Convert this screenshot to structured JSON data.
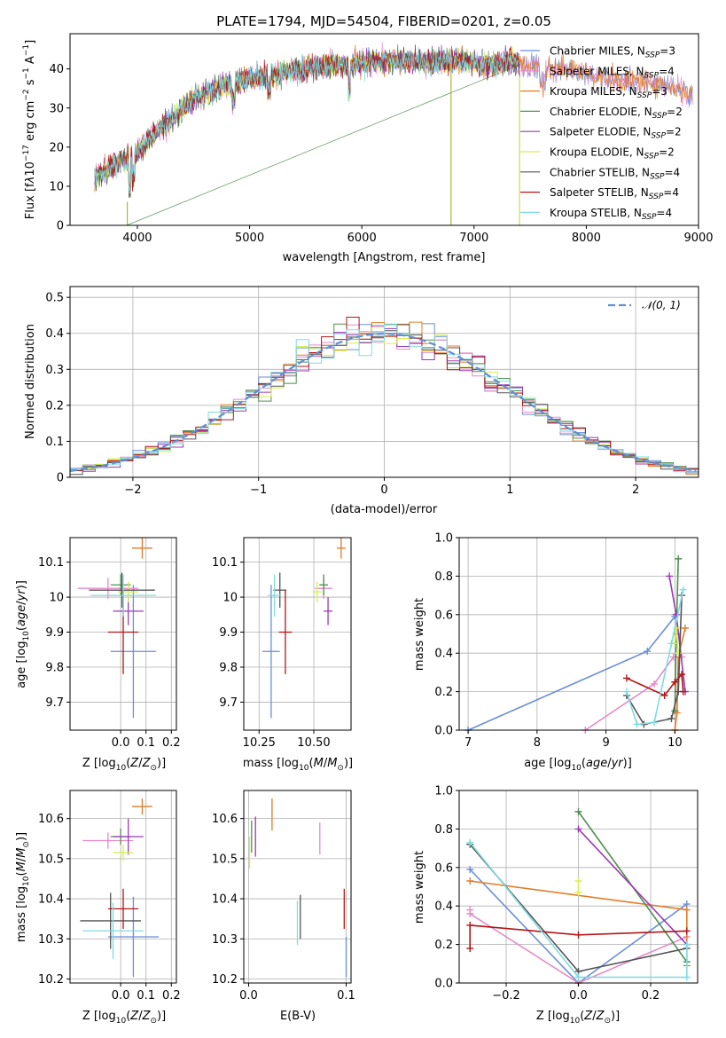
{
  "colors": {
    "Chabrier MILES": "#6a8ed8",
    "Salpeter MILES": "#e58ac6",
    "Kroupa MILES": "#e07c28",
    "Chabrier ELODIE": "#4f8f4f",
    "Salpeter ELODIE": "#9b39b6",
    "Kroupa ELODIE": "#d8ee50",
    "Chabrier STELIB": "#555555",
    "Salpeter STELIB": "#b01717",
    "Kroupa STELIB": "#7fdbe0",
    "normal": "#5f8fd6"
  },
  "chart_data": [
    {
      "type": "line",
      "title": "PLATE=1794, MJD=54504, FIBERID=0201, z=0.05",
      "xlabel": "wavelength [Angstrom, rest frame]",
      "ylabel": "Flux [fλ10⁻¹⁷ erg cm⁻² s⁻¹ A⁻¹]",
      "xlim": [
        3400,
        9000
      ],
      "ylim": [
        0,
        49
      ],
      "xticks": [
        4000,
        5000,
        6000,
        7000,
        8000,
        9000
      ],
      "yticks": [
        0,
        10,
        20,
        30,
        40
      ],
      "legend": "upper right",
      "series": [
        {
          "name": "Chabrier MILES",
          "nssp": "3"
        },
        {
          "name": "Salpeter MILES",
          "nssp": "4"
        },
        {
          "name": "Kroupa MILES",
          "nssp": "3"
        },
        {
          "name": "Chabrier ELODIE",
          "nssp": "2"
        },
        {
          "name": "Salpeter ELODIE",
          "nssp": "2"
        },
        {
          "name": "Kroupa ELODIE",
          "nssp": "2"
        },
        {
          "name": "Chabrier STELIB",
          "nssp": "4"
        },
        {
          "name": "Salpeter STELIB",
          "nssp": "4"
        },
        {
          "name": "Kroupa STELIB",
          "nssp": "4"
        }
      ],
      "spectrum_envelope": {
        "x": [
          3620,
          3700,
          3800,
          3900,
          4000,
          4100,
          4200,
          4300,
          4400,
          4500,
          4700,
          4900,
          5100,
          5300,
          5500,
          5700,
          5900,
          6100,
          6300,
          6500,
          6700,
          6900,
          7100,
          7300,
          7500,
          7700,
          7900,
          8100,
          8300,
          8500,
          8700,
          8900
        ],
        "y": [
          12,
          14,
          16,
          17,
          19,
          22,
          25,
          27,
          30,
          32,
          35,
          37,
          38,
          39,
          40,
          41,
          41,
          42,
          42,
          42,
          42,
          42,
          41,
          42,
          41,
          40,
          40,
          38,
          37,
          37,
          36,
          34
        ]
      }
    },
    {
      "type": "histogram",
      "xlabel": "(data-model)/error",
      "ylabel": "Normed distribution",
      "xlim": [
        -2.5,
        2.5
      ],
      "ylim": [
        0,
        0.53
      ],
      "xticks": [
        -2,
        -1,
        0,
        1,
        2
      ],
      "yticks": [
        0.0,
        0.1,
        0.2,
        0.3,
        0.4,
        0.5
      ],
      "bin_width": 0.1,
      "legend_label": "𝒩(0, 1)",
      "legend_position": "upper right"
    },
    {
      "type": "scatter",
      "xlabel": "Z [log₁₀(Z/Z⊙)]",
      "ylabel": "age  [log₁₀(age/yr)]",
      "xlim": [
        -0.2,
        0.22
      ],
      "ylim": [
        9.62,
        10.17
      ],
      "xticks": [
        "0.0",
        "0.1",
        "0.2"
      ],
      "xtick_values": [
        0.0,
        0.1,
        0.2
      ],
      "yticks": [
        9.7,
        9.8,
        9.9,
        10.0,
        10.1
      ],
      "points": [
        {
          "model": "Chabrier MILES",
          "x": 0.05,
          "xerr": 0.09,
          "y": 9.845,
          "yerr": 0.19
        },
        {
          "model": "Salpeter MILES",
          "x": -0.05,
          "xerr": 0.12,
          "y": 10.025,
          "yerr": 0.03
        },
        {
          "model": "Kroupa MILES",
          "x": 0.085,
          "xerr": 0.04,
          "y": 10.14,
          "yerr": 0.03
        },
        {
          "model": "Chabrier ELODIE",
          "x": 0.0,
          "xerr": 0.04,
          "y": 10.035,
          "yerr": 0.03
        },
        {
          "model": "Salpeter ELODIE",
          "x": 0.03,
          "xerr": 0.06,
          "y": 9.96,
          "yerr": 0.04
        },
        {
          "model": "Kroupa ELODIE",
          "x": 0.03,
          "xerr": 0.04,
          "y": 10.015,
          "yerr": 0.03
        },
        {
          "model": "Chabrier STELIB",
          "x": 0.005,
          "xerr": 0.13,
          "y": 10.02,
          "yerr": 0.05
        },
        {
          "model": "Salpeter STELIB",
          "x": 0.01,
          "xerr": 0.06,
          "y": 9.9,
          "yerr": 0.12
        },
        {
          "model": "Kroupa STELIB",
          "x": 0.01,
          "xerr": 0.13,
          "y": 10.005,
          "yerr": 0.06
        }
      ]
    },
    {
      "type": "scatter",
      "xlabel": "mass [log₁₀(M/M⊙)]",
      "ylabel": "",
      "xlim": [
        10.18,
        10.67
      ],
      "ylim": [
        9.62,
        10.17
      ],
      "xticks": [
        "10.25",
        "10.50"
      ],
      "xtick_values": [
        10.25,
        10.5
      ],
      "yticks": [
        9.7,
        9.8,
        9.9,
        10.0,
        10.1
      ],
      "points": [
        {
          "model": "Chabrier MILES",
          "x": 10.305,
          "xerr": 0.04,
          "y": 9.845,
          "yerr": 0.19
        },
        {
          "model": "Salpeter MILES",
          "x": 10.545,
          "xerr": 0.04,
          "y": 10.025,
          "yerr": 0.03
        },
        {
          "model": "Kroupa MILES",
          "x": 10.625,
          "xerr": 0.02,
          "y": 10.14,
          "yerr": 0.03
        },
        {
          "model": "Chabrier ELODIE",
          "x": 10.545,
          "xerr": 0.02,
          "y": 10.035,
          "yerr": 0.03
        },
        {
          "model": "Salpeter ELODIE",
          "x": 10.565,
          "xerr": 0.02,
          "y": 9.96,
          "yerr": 0.04
        },
        {
          "model": "Kroupa ELODIE",
          "x": 10.515,
          "xerr": 0.02,
          "y": 10.015,
          "yerr": 0.03
        },
        {
          "model": "Chabrier STELIB",
          "x": 10.345,
          "xerr": 0.03,
          "y": 10.02,
          "yerr": 0.05
        },
        {
          "model": "Salpeter STELIB",
          "x": 10.37,
          "xerr": 0.03,
          "y": 9.9,
          "yerr": 0.12
        },
        {
          "model": "Kroupa STELIB",
          "x": 10.32,
          "xerr": 0.03,
          "y": 10.005,
          "yerr": 0.06
        }
      ]
    },
    {
      "type": "line",
      "xlabel": "age  [log₁₀(age/yr)]",
      "ylabel": "mass weight",
      "xlim": [
        6.87,
        10.33
      ],
      "ylim": [
        0,
        1.0
      ],
      "xticks": [
        7,
        8,
        9,
        10
      ],
      "yticks": [
        "0.0",
        "0.2",
        "0.4",
        "0.6",
        "0.8",
        "1.0"
      ],
      "ytick_values": [
        0,
        0.2,
        0.4,
        0.6,
        0.8,
        1.0
      ],
      "series": [
        {
          "model": "Chabrier MILES",
          "x": [
            7.0,
            9.6,
            10.0
          ],
          "y": [
            0.0,
            0.41,
            0.59
          ]
        },
        {
          "model": "Salpeter MILES",
          "x": [
            8.7,
            9.7,
            9.98,
            10.1
          ],
          "y": [
            0.0,
            0.24,
            0.38,
            0.38
          ]
        },
        {
          "model": "Kroupa MILES",
          "x": [
            10.15,
            10.05,
            10.03,
            10.0
          ],
          "y": [
            0.53,
            0.38,
            0.09,
            0.0
          ]
        },
        {
          "model": "Chabrier ELODIE",
          "x": [
            10.05,
            10.02,
            10.0
          ],
          "y": [
            0.89,
            0.5,
            0.1
          ]
        },
        {
          "model": "Salpeter ELODIE",
          "x": [
            9.92,
            10.02,
            10.15
          ],
          "y": [
            0.8,
            0.6,
            0.2
          ]
        },
        {
          "model": "Kroupa ELODIE",
          "x": [
            10.0,
            10.02,
            10.05
          ],
          "y": [
            0.45,
            0.53,
            0.4
          ]
        },
        {
          "model": "Chabrier STELIB",
          "x": [
            9.3,
            9.55,
            9.95,
            10.05,
            10.1
          ],
          "y": [
            0.18,
            0.03,
            0.06,
            0.2,
            0.7
          ]
        },
        {
          "model": "Salpeter STELIB",
          "x": [
            9.3,
            9.85,
            10.0,
            10.1,
            10.12
          ],
          "y": [
            0.27,
            0.18,
            0.25,
            0.29,
            0.2
          ]
        },
        {
          "model": "Kroupa STELIB",
          "x": [
            9.3,
            9.45,
            9.7,
            9.95,
            10.12
          ],
          "y": [
            0.2,
            0.03,
            0.04,
            0.45,
            0.73
          ]
        }
      ]
    },
    {
      "type": "scatter",
      "xlabel": "Z [log₁₀(Z/Z⊙)]",
      "ylabel": "mass [log₁₀(M/M⊙)]",
      "xlim": [
        -0.2,
        0.22
      ],
      "ylim": [
        10.19,
        10.67
      ],
      "xticks": [
        "0.0",
        "0.1",
        "0.2"
      ],
      "xtick_values": [
        0.0,
        0.1,
        0.2
      ],
      "yticks": [
        "10.2",
        "10.3",
        "10.4",
        "10.5",
        "10.6"
      ],
      "ytick_values": [
        10.2,
        10.3,
        10.4,
        10.5,
        10.6
      ],
      "points": [
        {
          "model": "Chabrier MILES",
          "x": 0.05,
          "xerr": 0.1,
          "y": 10.305,
          "yerr": 0.1
        },
        {
          "model": "Salpeter MILES",
          "x": -0.05,
          "xerr": 0.1,
          "y": 10.545,
          "yerr": 0.02
        },
        {
          "model": "Kroupa MILES",
          "x": 0.085,
          "xerr": 0.04,
          "y": 10.63,
          "yerr": 0.02
        },
        {
          "model": "Chabrier ELODIE",
          "x": 0.0,
          "xerr": 0.04,
          "y": 10.555,
          "yerr": 0.02
        },
        {
          "model": "Salpeter ELODIE",
          "x": 0.03,
          "xerr": 0.06,
          "y": 10.555,
          "yerr": 0.045
        },
        {
          "model": "Kroupa ELODIE",
          "x": 0.01,
          "xerr": 0.04,
          "y": 10.515,
          "yerr": 0.02
        },
        {
          "model": "Chabrier STELIB",
          "x": -0.04,
          "xerr": 0.12,
          "y": 10.345,
          "yerr": 0.07
        },
        {
          "model": "Salpeter STELIB",
          "x": 0.01,
          "xerr": 0.06,
          "y": 10.375,
          "yerr": 0.05
        },
        {
          "model": "Kroupa STELIB",
          "x": -0.03,
          "xerr": 0.12,
          "y": 10.32,
          "yerr": 0.07
        }
      ]
    },
    {
      "type": "scatter",
      "xlabel": "E(B-V)",
      "ylabel": "",
      "xlim": [
        -0.005,
        0.105
      ],
      "ylim": [
        10.19,
        10.67
      ],
      "xticks": [
        "0.0",
        "0.1"
      ],
      "xtick_values": [
        0.0,
        0.1
      ],
      "yticks": [
        "10.2",
        "10.3",
        "10.4",
        "10.5",
        "10.6"
      ],
      "ytick_values": [
        10.2,
        10.3,
        10.4,
        10.5,
        10.6
      ],
      "points": [
        {
          "model": "Chabrier MILES",
          "x": 0.1,
          "y": 10.255,
          "yerr": 0.05
        },
        {
          "model": "Salpeter MILES",
          "x": 0.073,
          "y": 10.55,
          "yerr": 0.04
        },
        {
          "model": "Kroupa MILES",
          "x": 0.024,
          "y": 10.61,
          "yerr": 0.04
        },
        {
          "model": "Chabrier ELODIE",
          "x": 0.003,
          "y": 10.555,
          "yerr": 0.04
        },
        {
          "model": "Salpeter ELODIE",
          "x": 0.007,
          "y": 10.555,
          "yerr": 0.05
        },
        {
          "model": "Kroupa ELODIE",
          "x": 0.001,
          "y": 10.515,
          "yerr": 0.04
        },
        {
          "model": "Chabrier STELIB",
          "x": 0.053,
          "y": 10.355,
          "yerr": 0.055
        },
        {
          "model": "Salpeter STELIB",
          "x": 0.098,
          "y": 10.375,
          "yerr": 0.05
        },
        {
          "model": "Kroupa STELIB",
          "x": 0.05,
          "y": 10.34,
          "yerr": 0.055
        }
      ]
    },
    {
      "type": "line",
      "xlabel": "Z [log₁₀(Z/Z⊙)]",
      "ylabel": "mass weight",
      "xlim": [
        -0.33,
        0.33
      ],
      "ylim": [
        0,
        1.0
      ],
      "xticks": [
        "−0.2",
        "0.0",
        "0.2"
      ],
      "xtick_values": [
        -0.2,
        0.0,
        0.2
      ],
      "yticks": [
        "0.0",
        "0.2",
        "0.4",
        "0.6",
        "0.8",
        "1.0"
      ],
      "ytick_values": [
        0,
        0.2,
        0.4,
        0.6,
        0.8,
        1.0
      ],
      "series": [
        {
          "model": "Chabrier MILES",
          "x": [
            -0.3,
            0.0,
            0.3
          ],
          "y": [
            0.59,
            0.0,
            0.41
          ]
        },
        {
          "model": "Salpeter MILES",
          "x": [
            -0.3,
            -0.3,
            0.0,
            0.3
          ],
          "y": [
            0.38,
            0.36,
            0.0,
            0.24
          ]
        },
        {
          "model": "Kroupa MILES",
          "x": [
            -0.3,
            0.3,
            0.3
          ],
          "y": [
            0.53,
            0.38,
            0.09
          ]
        },
        {
          "model": "Chabrier ELODIE",
          "x": [
            0.0,
            0.3
          ],
          "y": [
            0.89,
            0.11
          ]
        },
        {
          "model": "Salpeter ELODIE",
          "x": [
            0.0,
            0.3
          ],
          "y": [
            0.8,
            0.2
          ]
        },
        {
          "model": "Kroupa ELODIE",
          "x": [
            0.0,
            0.0
          ],
          "y": [
            0.53,
            0.47
          ]
        },
        {
          "model": "Chabrier STELIB",
          "x": [
            -0.3,
            0.0,
            0.3
          ],
          "y": [
            0.72,
            0.06,
            0.18
          ]
        },
        {
          "model": "Salpeter STELIB",
          "x": [
            -0.3,
            -0.3,
            0.0,
            0.3
          ],
          "y": [
            0.18,
            0.3,
            0.25,
            0.27
          ]
        },
        {
          "model": "Kroupa STELIB",
          "x": [
            -0.3,
            0.0,
            0.3,
            0.3
          ],
          "y": [
            0.73,
            0.03,
            0.03,
            0.2
          ]
        }
      ]
    }
  ]
}
